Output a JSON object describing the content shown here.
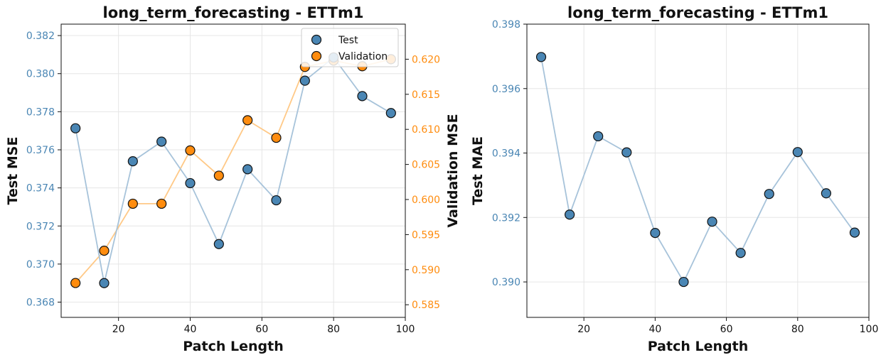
{
  "colors": {
    "test": "#4a86b4",
    "test_line": "#a7c3da",
    "validation": "#ff8c0e",
    "validation_line": "#ffc987",
    "grid": "#e6e6e6",
    "axis": "#111111"
  },
  "chart_data": [
    {
      "type": "line",
      "title": "long_term_forecasting - ETTm1",
      "xlabel": "Patch Length",
      "ylabel": "Test MSE",
      "ylabel_right": "Validation MSE",
      "xlim": [
        4,
        100
      ],
      "ylim": [
        0.3672,
        0.3826
      ],
      "ylim_right": [
        0.5832,
        0.625
      ],
      "x_ticks": [
        20,
        40,
        60,
        80,
        100
      ],
      "y_ticks": [
        0.368,
        0.37,
        0.372,
        0.374,
        0.376,
        0.378,
        0.38,
        0.382
      ],
      "y_ticks_right": [
        0.585,
        0.59,
        0.595,
        0.6,
        0.605,
        0.61,
        0.615,
        0.62
      ],
      "x_tick_labels": [
        "20",
        "40",
        "60",
        "80",
        "100"
      ],
      "y_tick_labels": [
        "0.368",
        "0.370",
        "0.372",
        "0.374",
        "0.376",
        "0.378",
        "0.380",
        "0.382"
      ],
      "y_tick_labels_right": [
        "0.585",
        "0.590",
        "0.595",
        "0.600",
        "0.605",
        "0.610",
        "0.615",
        "0.620"
      ],
      "grid": true,
      "legend": "top-right",
      "x": [
        8,
        16,
        24,
        32,
        40,
        48,
        56,
        64,
        72,
        80,
        88,
        96
      ],
      "series": [
        {
          "name": "Test",
          "axis": "left",
          "values": [
            0.37713,
            0.369,
            0.3754,
            0.37643,
            0.37425,
            0.37105,
            0.37498,
            0.37335,
            0.37963,
            0.38085,
            0.37882,
            0.37793
          ]
        },
        {
          "name": "Validation",
          "axis": "right",
          "values": [
            0.5881,
            0.5927,
            0.5994,
            0.5994,
            0.607,
            0.6034,
            0.6113,
            0.6088,
            0.6189,
            0.6198,
            0.619,
            0.62
          ]
        }
      ]
    },
    {
      "type": "line",
      "title": "long_term_forecasting - ETTm1",
      "xlabel": "Patch Length",
      "ylabel": "Test MAE",
      "xlim": [
        4,
        100
      ],
      "ylim": [
        0.3889,
        0.398
      ],
      "x_ticks": [
        20,
        40,
        60,
        80,
        100
      ],
      "y_ticks": [
        0.39,
        0.392,
        0.394,
        0.396,
        0.398
      ],
      "x_tick_labels": [
        "20",
        "40",
        "60",
        "80",
        "100"
      ],
      "y_tick_labels": [
        "0.390",
        "0.392",
        "0.394",
        "0.396",
        "0.398"
      ],
      "grid": true,
      "x": [
        8,
        16,
        24,
        32,
        40,
        48,
        56,
        64,
        72,
        80,
        88,
        96
      ],
      "series": [
        {
          "name": "",
          "axis": "left",
          "values": [
            0.39698,
            0.39209,
            0.39452,
            0.39402,
            0.39152,
            0.39,
            0.39187,
            0.3909,
            0.39273,
            0.39403,
            0.39275,
            0.39153
          ]
        }
      ]
    }
  ]
}
